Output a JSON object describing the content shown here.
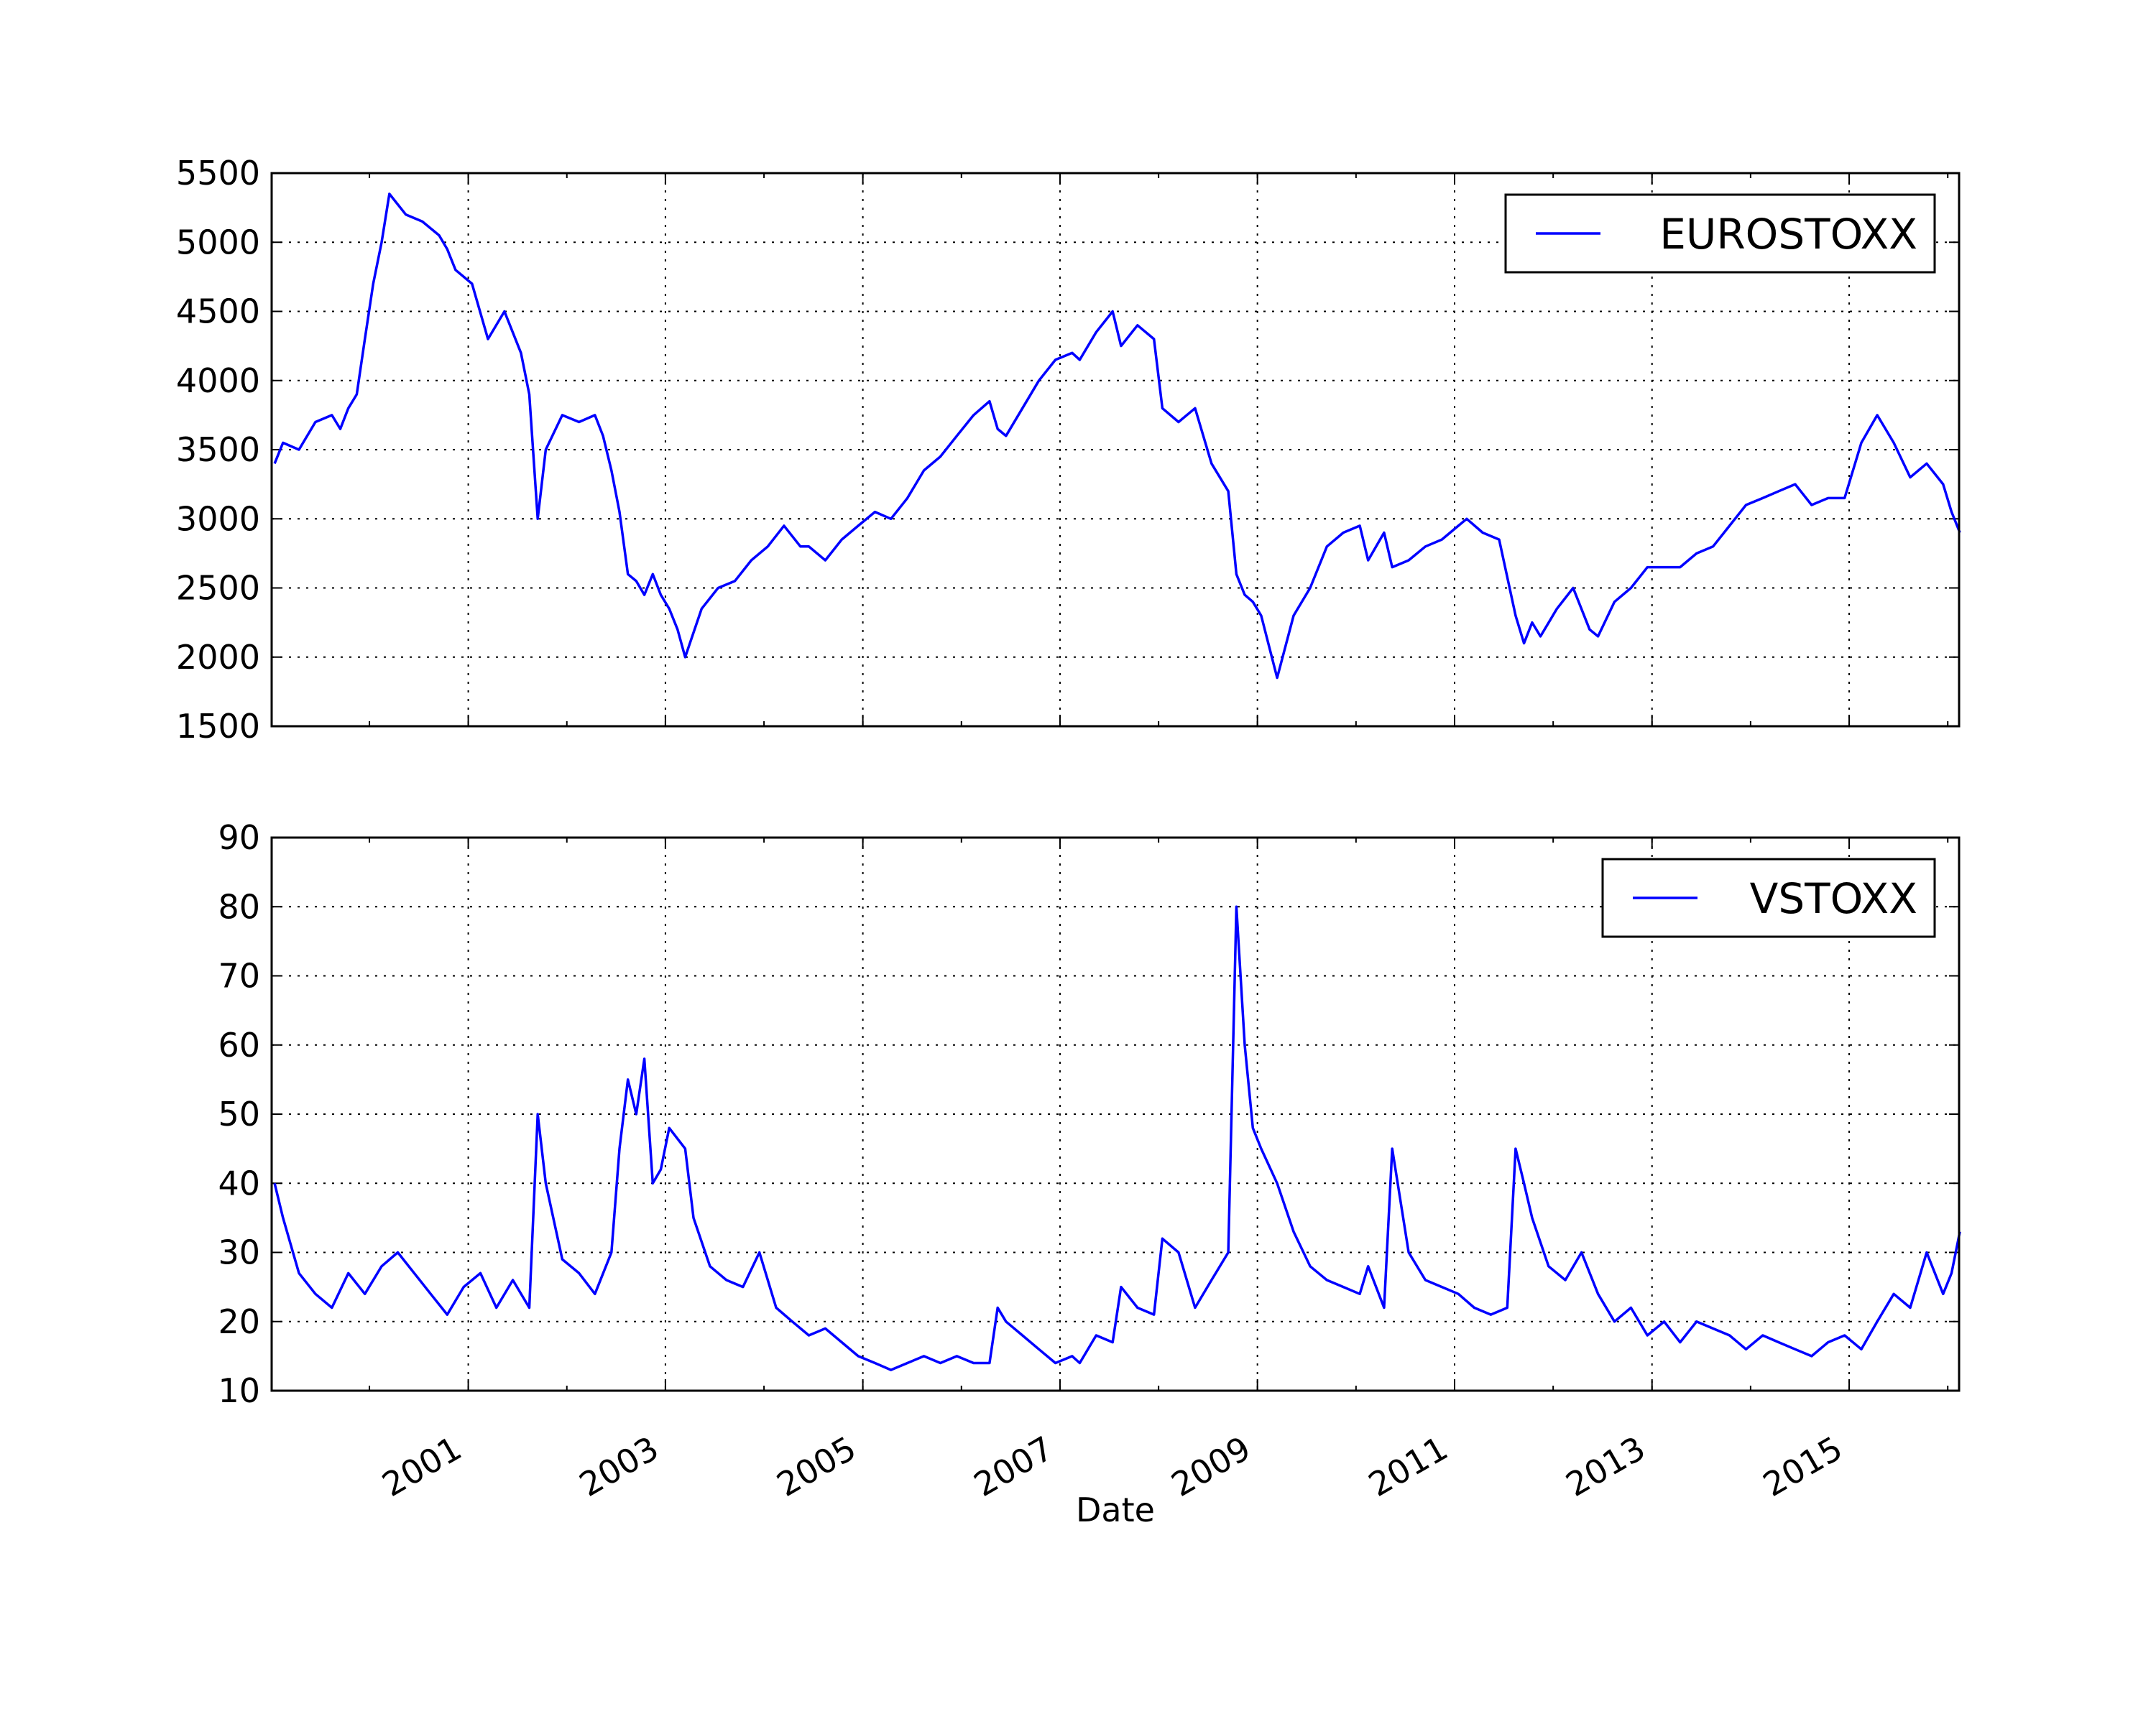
{
  "chart_data": [
    {
      "type": "line",
      "legend": "EUROSTOXX",
      "legend_position": "upper right",
      "grid": true,
      "grid_style": "dotted",
      "ylim": [
        1500,
        5500
      ],
      "yticks": [
        "1500",
        "2000",
        "2500",
        "3000",
        "3500",
        "4000",
        "4500",
        "5000",
        "5500"
      ],
      "xlim": [
        "1999-01-04",
        "2016-02-12"
      ],
      "series": [
        {
          "name": "EUROSTOXX",
          "color": "#0000ff",
          "x": [
            "1999-01",
            "1999-02",
            "1999-04",
            "1999-06",
            "1999-08",
            "1999-09",
            "1999-10",
            "1999-11",
            "1999-12",
            "2000-01",
            "2000-02",
            "2000-03",
            "2000-05",
            "2000-07",
            "2000-09",
            "2000-10",
            "2000-11",
            "2001-01",
            "2001-03",
            "2001-05",
            "2001-07",
            "2001-08",
            "2001-09",
            "2001-10",
            "2001-12",
            "2002-02",
            "2002-04",
            "2002-05",
            "2002-06",
            "2002-07",
            "2002-08",
            "2002-09",
            "2002-10",
            "2002-11",
            "2002-12",
            "2003-01",
            "2003-02",
            "2003-03",
            "2003-05",
            "2003-07",
            "2003-09",
            "2003-11",
            "2004-01",
            "2004-03",
            "2004-05",
            "2004-06",
            "2004-08",
            "2004-10",
            "2004-12",
            "2005-02",
            "2005-04",
            "2005-06",
            "2005-08",
            "2005-10",
            "2005-12",
            "2006-02",
            "2006-04",
            "2006-05",
            "2006-06",
            "2006-08",
            "2006-10",
            "2006-12",
            "2007-02",
            "2007-03",
            "2007-05",
            "2007-07",
            "2007-08",
            "2007-10",
            "2007-12",
            "2008-01",
            "2008-03",
            "2008-05",
            "2008-07",
            "2008-09",
            "2008-10",
            "2008-11",
            "2008-12",
            "2009-01",
            "2009-03",
            "2009-05",
            "2009-07",
            "2009-09",
            "2009-11",
            "2010-01",
            "2010-02",
            "2010-04",
            "2010-05",
            "2010-07",
            "2010-09",
            "2010-11",
            "2011-01",
            "2011-02",
            "2011-04",
            "2011-06",
            "2011-08",
            "2011-09",
            "2011-10",
            "2011-11",
            "2012-01",
            "2012-03",
            "2012-05",
            "2012-06",
            "2012-08",
            "2012-10",
            "2012-12",
            "2013-02",
            "2013-04",
            "2013-06",
            "2013-08",
            "2013-10",
            "2013-12",
            "2014-02",
            "2014-04",
            "2014-06",
            "2014-08",
            "2014-10",
            "2014-12",
            "2015-02",
            "2015-04",
            "2015-06",
            "2015-08",
            "2015-10",
            "2015-12",
            "2016-01",
            "2016-02"
          ],
          "y": [
            3400,
            3550,
            3500,
            3700,
            3750,
            3650,
            3800,
            3900,
            4300,
            4700,
            5000,
            5350,
            5200,
            5150,
            5050,
            4950,
            4800,
            4700,
            4300,
            4500,
            4200,
            3900,
            3000,
            3500,
            3750,
            3700,
            3750,
            3600,
            3350,
            3050,
            2600,
            2550,
            2450,
            2600,
            2450,
            2350,
            2200,
            2000,
            2350,
            2500,
            2550,
            2700,
            2800,
            2950,
            2800,
            2800,
            2700,
            2850,
            2950,
            3050,
            3000,
            3150,
            3350,
            3450,
            3600,
            3750,
            3850,
            3650,
            3600,
            3800,
            4000,
            4150,
            4200,
            4150,
            4350,
            4500,
            4250,
            4400,
            4300,
            3800,
            3700,
            3800,
            3400,
            3200,
            2600,
            2450,
            2400,
            2300,
            1850,
            2300,
            2500,
            2800,
            2900,
            2950,
            2700,
            2900,
            2650,
            2700,
            2800,
            2850,
            2950,
            3000,
            2900,
            2850,
            2300,
            2100,
            2250,
            2150,
            2350,
            2500,
            2200,
            2150,
            2400,
            2500,
            2650,
            2650,
            2650,
            2750,
            2800,
            2950,
            3100,
            3150,
            3200,
            3250,
            3100,
            3150,
            3150,
            3550,
            3750,
            3550,
            3300,
            3400,
            3250,
            3050,
            2900
          ],
          "values_approximate": true
        }
      ]
    },
    {
      "type": "line",
      "legend": "VSTOXX",
      "legend_position": "upper right",
      "grid": true,
      "grid_style": "dotted",
      "ylim": [
        10,
        90
      ],
      "yticks": [
        "10",
        "20",
        "30",
        "40",
        "50",
        "60",
        "70",
        "80",
        "90"
      ],
      "xlim": [
        "1999-01-04",
        "2016-02-12"
      ],
      "xticks": [
        "2001",
        "2003",
        "2005",
        "2007",
        "2009",
        "2011",
        "2013",
        "2015"
      ],
      "xlabel": "Date",
      "series": [
        {
          "name": "VSTOXX",
          "color": "#0000ff",
          "x": [
            "1999-01",
            "1999-02",
            "1999-04",
            "1999-06",
            "1999-08",
            "1999-10",
            "1999-12",
            "2000-02",
            "2000-04",
            "2000-06",
            "2000-08",
            "2000-10",
            "2000-12",
            "2001-02",
            "2001-04",
            "2001-06",
            "2001-08",
            "2001-09",
            "2001-10",
            "2001-12",
            "2002-02",
            "2002-04",
            "2002-06",
            "2002-07",
            "2002-08",
            "2002-09",
            "2002-10",
            "2002-11",
            "2002-12",
            "2003-01",
            "2003-03",
            "2003-04",
            "2003-06",
            "2003-08",
            "2003-10",
            "2003-12",
            "2004-02",
            "2004-04",
            "2004-06",
            "2004-08",
            "2004-10",
            "2004-12",
            "2005-02",
            "2005-04",
            "2005-06",
            "2005-08",
            "2005-10",
            "2005-12",
            "2006-02",
            "2006-04",
            "2006-05",
            "2006-06",
            "2006-08",
            "2006-10",
            "2006-12",
            "2007-02",
            "2007-03",
            "2007-05",
            "2007-07",
            "2007-08",
            "2007-10",
            "2007-12",
            "2008-01",
            "2008-03",
            "2008-05",
            "2008-07",
            "2008-09",
            "2008-10",
            "2008-11",
            "2008-12",
            "2009-01",
            "2009-03",
            "2009-05",
            "2009-07",
            "2009-09",
            "2009-11",
            "2010-01",
            "2010-02",
            "2010-04",
            "2010-05",
            "2010-07",
            "2010-09",
            "2010-11",
            "2011-01",
            "2011-03",
            "2011-05",
            "2011-07",
            "2011-08",
            "2011-09",
            "2011-10",
            "2011-12",
            "2012-02",
            "2012-04",
            "2012-06",
            "2012-08",
            "2012-10",
            "2012-12",
            "2013-02",
            "2013-04",
            "2013-06",
            "2013-08",
            "2013-10",
            "2013-12",
            "2014-02",
            "2014-04",
            "2014-06",
            "2014-08",
            "2014-10",
            "2014-12",
            "2015-02",
            "2015-04",
            "2015-06",
            "2015-08",
            "2015-10",
            "2015-12",
            "2016-01",
            "2016-02"
          ],
          "y": [
            40,
            35,
            27,
            24,
            22,
            27,
            24,
            28,
            30,
            27,
            24,
            21,
            25,
            27,
            22,
            26,
            22,
            50,
            40,
            29,
            27,
            24,
            30,
            45,
            55,
            50,
            58,
            40,
            42,
            48,
            45,
            35,
            28,
            26,
            25,
            30,
            22,
            20,
            18,
            19,
            17,
            15,
            14,
            13,
            14,
            15,
            14,
            15,
            14,
            14,
            22,
            20,
            18,
            16,
            14,
            15,
            14,
            18,
            17,
            25,
            22,
            21,
            32,
            30,
            22,
            26,
            30,
            80,
            60,
            48,
            45,
            40,
            33,
            28,
            26,
            25,
            24,
            28,
            22,
            45,
            30,
            26,
            25,
            24,
            22,
            21,
            22,
            45,
            40,
            35,
            28,
            26,
            30,
            24,
            20,
            22,
            18,
            20,
            17,
            20,
            19,
            18,
            16,
            18,
            17,
            16,
            15,
            17,
            18,
            16,
            20,
            24,
            22,
            30,
            24,
            27,
            33
          ],
          "values_approximate": true
        }
      ]
    }
  ]
}
